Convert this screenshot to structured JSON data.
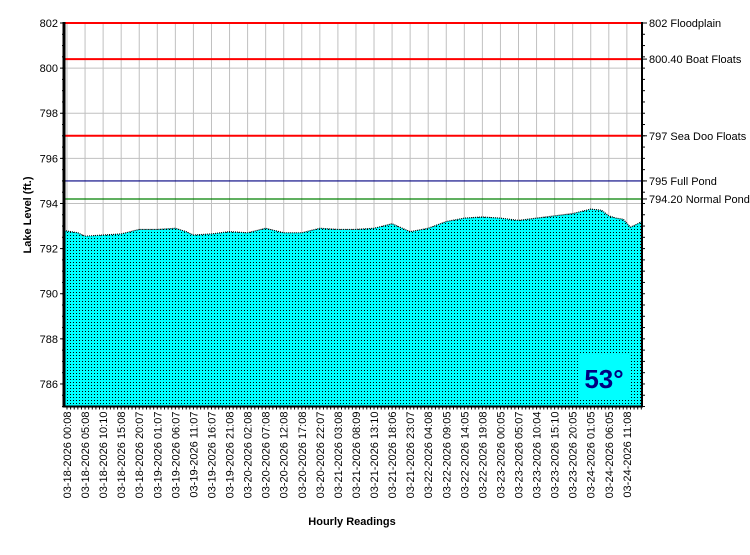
{
  "chart_data": {
    "type": "area",
    "title": "",
    "xlabel": "Hourly Readings",
    "ylabel": "Lake Level (ft.)",
    "ylim": [
      785,
      802
    ],
    "yticks": [
      786,
      788,
      790,
      792,
      794,
      796,
      798,
      800,
      802
    ],
    "grid": true,
    "xtick_labels": [
      "03-18-2026 00:08",
      "03-18-2026 05:08",
      "03-18-2026 10:10",
      "03-18-2026 15:08",
      "03-18-2026 20:07",
      "03-19-2026 01:07",
      "03-19-2026 06:07",
      "03-19-2026 11:07",
      "03-19-2026 16:07",
      "03-19-2026 21:08",
      "03-20-2026 02:08",
      "03-20-2026 07:08",
      "03-20-2026 12:08",
      "03-20-2026 17:08",
      "03-20-2026 22:07",
      "03-21-2026 03:08",
      "03-21-2026 08:09",
      "03-21-2026 13:10",
      "03-21-2026 18:06",
      "03-21-2026 23:07",
      "03-22-2026 04:08",
      "03-22-2026 09:05",
      "03-22-2026 14:05",
      "03-22-2026 19:08",
      "03-23-2026 00:05",
      "03-23-2026 05:07",
      "03-23-2026 10:04",
      "03-23-2026 15:10",
      "03-23-2026 20:05",
      "03-24-2026 01:05",
      "03-24-2026 06:05",
      "03-24-2026 11:08"
    ],
    "hours_per_tick": 5,
    "series": [
      {
        "name": "Lake Level",
        "x_hours": [
          0,
          3,
          5,
          10,
          15,
          20,
          25,
          30,
          33,
          35,
          40,
          45,
          50,
          55,
          60,
          65,
          70,
          75,
          80,
          85,
          90,
          95,
          100,
          105,
          110,
          115,
          120,
          125,
          130,
          135,
          140,
          145,
          148,
          150,
          152,
          154,
          156,
          158,
          159
        ],
        "values": [
          792.8,
          792.7,
          792.55,
          792.6,
          792.65,
          792.85,
          792.85,
          792.9,
          792.75,
          792.6,
          792.65,
          792.75,
          792.7,
          792.9,
          792.7,
          792.7,
          792.9,
          792.85,
          792.85,
          792.9,
          793.1,
          792.75,
          792.9,
          793.2,
          793.35,
          793.4,
          793.35,
          793.25,
          793.35,
          793.45,
          793.55,
          793.75,
          793.7,
          793.45,
          793.35,
          793.3,
          792.95,
          793.1,
          793.2
        ]
      }
    ],
    "reference_lines": [
      {
        "value": 802,
        "label": "802 Floodplain",
        "color": "#ff0000"
      },
      {
        "value": 800.4,
        "label": "800.40 Boat Floats",
        "color": "#ff0000"
      },
      {
        "value": 797,
        "label": "797 Sea Doo Floats",
        "color": "#ff0000"
      },
      {
        "value": 795,
        "label": "795 Full Pond",
        "color": "#000080"
      },
      {
        "value": 794.2,
        "label": "794.20 Normal Pond",
        "color": "#008000"
      }
    ],
    "fill_color": "#00ffff",
    "temperature": "53°",
    "temperature_color": "#000080"
  }
}
